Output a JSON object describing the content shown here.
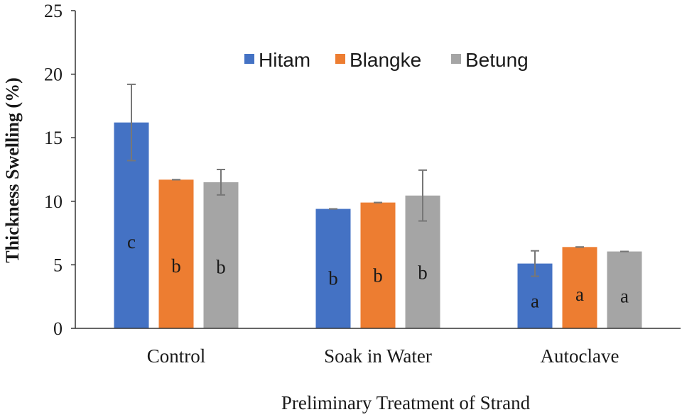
{
  "chart_data": {
    "type": "bar",
    "title": "",
    "xlabel": "Preliminary Treatment of Strand",
    "ylabel": "Thickness Swelling (%)",
    "ylim": [
      0,
      25
    ],
    "yticks": [
      "0",
      "5",
      "10",
      "15",
      "20",
      "25"
    ],
    "categories": [
      "Control",
      "Soak in Water",
      "Autoclave"
    ],
    "legend_placement": "top-center",
    "grid": false,
    "series": [
      {
        "name": "Hitam",
        "color": "#4472c4",
        "values": [
          16.2,
          9.4,
          5.1
        ],
        "errors": [
          3.0,
          0.0,
          1.0
        ],
        "labels": [
          "c",
          "b",
          "a"
        ]
      },
      {
        "name": "Blangke",
        "color": "#ed7d31",
        "values": [
          11.7,
          9.9,
          6.4
        ],
        "errors": [
          0.0,
          0.0,
          0.0
        ],
        "labels": [
          "b",
          "b",
          "a"
        ]
      },
      {
        "name": "Betung",
        "color": "#a5a5a5",
        "values": [
          11.5,
          10.45,
          6.05
        ],
        "errors": [
          1.0,
          2.0,
          0.0
        ],
        "labels": [
          "b",
          "b",
          "a"
        ]
      }
    ]
  }
}
